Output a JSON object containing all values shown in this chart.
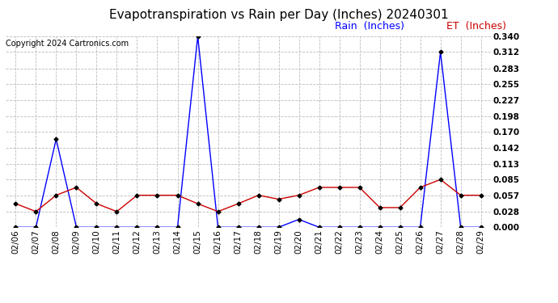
{
  "title": "Evapotranspiration vs Rain per Day (Inches) 20240301",
  "copyright": "Copyright 2024 Cartronics.com",
  "legend_rain": "Rain  (Inches)",
  "legend_et": "ET  (Inches)",
  "dates": [
    "02/06",
    "02/07",
    "02/08",
    "02/09",
    "02/10",
    "02/11",
    "02/12",
    "02/13",
    "02/14",
    "02/15",
    "02/16",
    "02/17",
    "02/18",
    "02/19",
    "02/20",
    "02/21",
    "02/22",
    "02/23",
    "02/24",
    "02/25",
    "02/26",
    "02/27",
    "02/28",
    "02/29"
  ],
  "rain": [
    0.0,
    0.0,
    0.157,
    0.0,
    0.0,
    0.0,
    0.0,
    0.0,
    0.0,
    0.34,
    0.0,
    0.0,
    0.0,
    0.0,
    0.014,
    0.0,
    0.0,
    0.0,
    0.0,
    0.0,
    0.0,
    0.312,
    0.0,
    0.0
  ],
  "et": [
    0.042,
    0.028,
    0.057,
    0.071,
    0.042,
    0.028,
    0.057,
    0.057,
    0.057,
    0.042,
    0.028,
    0.042,
    0.057,
    0.05,
    0.057,
    0.071,
    0.071,
    0.071,
    0.035,
    0.035,
    0.071,
    0.085,
    0.057,
    0.057
  ],
  "ylim_min": 0.0,
  "ylim_max": 0.34,
  "yticks": [
    0.0,
    0.028,
    0.057,
    0.085,
    0.113,
    0.142,
    0.17,
    0.198,
    0.227,
    0.255,
    0.283,
    0.312,
    0.34
  ],
  "rain_color": "#0000ff",
  "et_color": "#cc0000",
  "background_color": "#ffffff",
  "grid_color": "#bbbbbb",
  "title_fontsize": 11,
  "copyright_fontsize": 7,
  "legend_fontsize": 9,
  "tick_fontsize": 7.5
}
